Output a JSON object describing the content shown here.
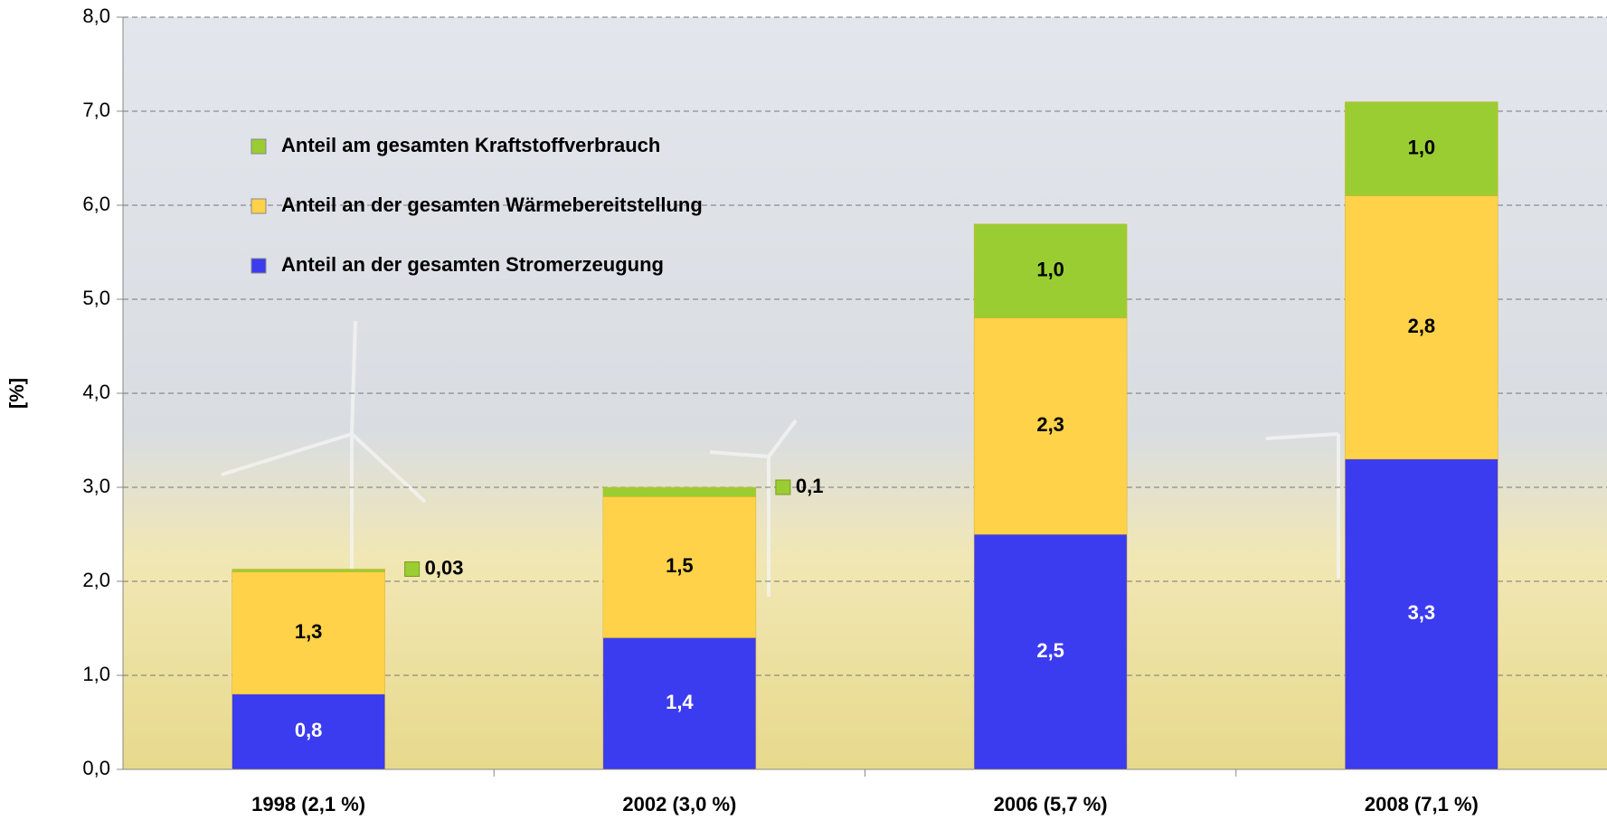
{
  "chart_data": {
    "type": "stacked-bar",
    "y_label": "[%]",
    "categories": [
      "1998 (2,1 %)",
      "2002 (3,0 %)",
      "2006 (5,7 %)",
      "2008 (7,1 %)"
    ],
    "series": [
      {
        "name": "Anteil an der gesamten Stromerzeugung",
        "color": "#3b3bf0",
        "label_color": "#ffffff",
        "values": [
          0.8,
          1.4,
          2.5,
          3.3
        ],
        "value_labels": [
          "0,8",
          "1,4",
          "2,5",
          "3,3"
        ]
      },
      {
        "name": "Anteil an der gesamten Wärmebereitstellung",
        "color": "#ffd24a",
        "label_color": "#000000",
        "values": [
          1.3,
          1.5,
          2.3,
          2.8
        ],
        "value_labels": [
          "1,3",
          "1,5",
          "2,3",
          "2,8"
        ]
      },
      {
        "name": "Anteil am gesamten Kraftstoffverbrauch",
        "color": "#9acd32",
        "label_color": "#000000",
        "values": [
          0.03,
          0.1,
          1.0,
          1.0
        ],
        "value_labels": [
          "0,03",
          "0,1",
          "1,0",
          "1,0"
        ]
      }
    ],
    "ylim": [
      0,
      8
    ],
    "yticks": [
      {
        "value": 0,
        "label": "0,0"
      },
      {
        "value": 1,
        "label": "1,0"
      },
      {
        "value": 2,
        "label": "2,0"
      },
      {
        "value": 3,
        "label": "3,0"
      },
      {
        "value": 4,
        "label": "4,0"
      },
      {
        "value": 5,
        "label": "5,0"
      },
      {
        "value": 6,
        "label": "6,0"
      },
      {
        "value": 7,
        "label": "7,0"
      },
      {
        "value": 8,
        "label": "8,0"
      }
    ],
    "grid": true
  }
}
